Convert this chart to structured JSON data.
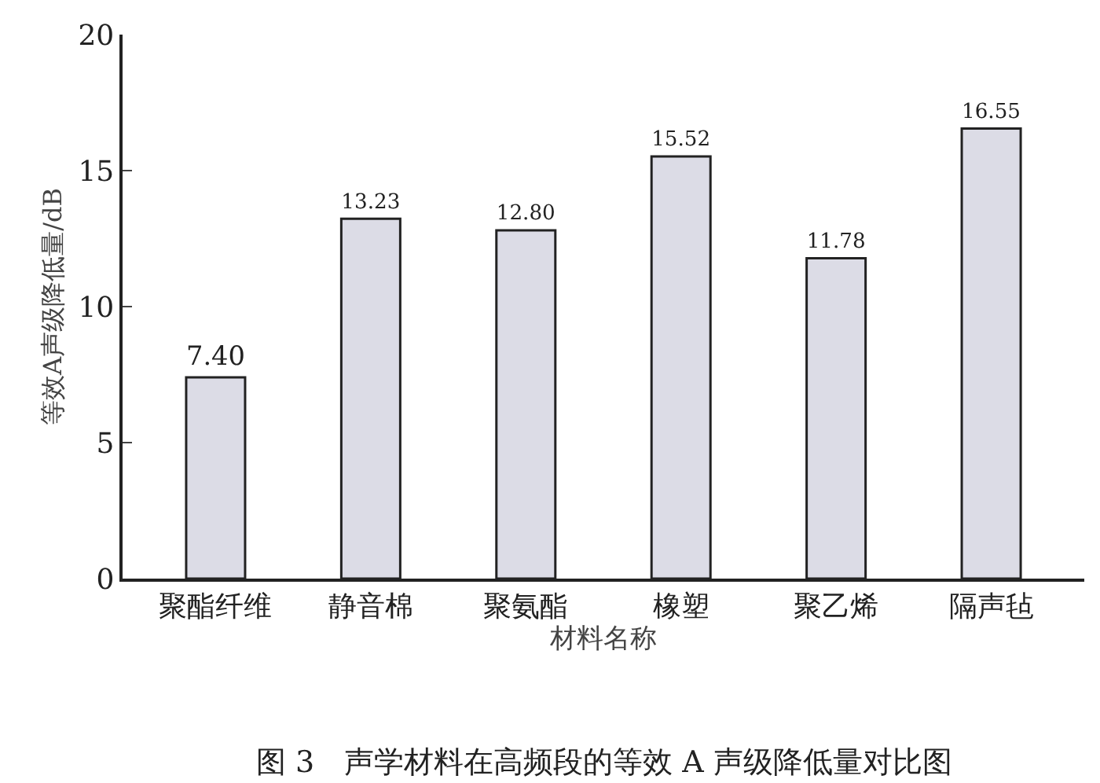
{
  "chart_data": {
    "type": "bar",
    "categories": [
      "聚酯纤维",
      "静音棉",
      "聚氨酯",
      "橡塑",
      "聚乙烯",
      "隔声毡"
    ],
    "values": [
      7.4,
      13.23,
      12.8,
      15.52,
      11.78,
      16.55
    ],
    "value_labels": [
      "7.40",
      "13.23",
      "12.80",
      "15.52",
      "11.78",
      "16.55"
    ],
    "color": "#dcdce6",
    "xlabel": "材料名称",
    "ylabel": "等效A声级降低量/dB",
    "ylim": [
      0,
      20
    ],
    "yticks": [
      0,
      5,
      10,
      15,
      20
    ],
    "annotations": [
      "图 3　声学材料在高频段的等效 A 声级降低量对比图"
    ]
  }
}
